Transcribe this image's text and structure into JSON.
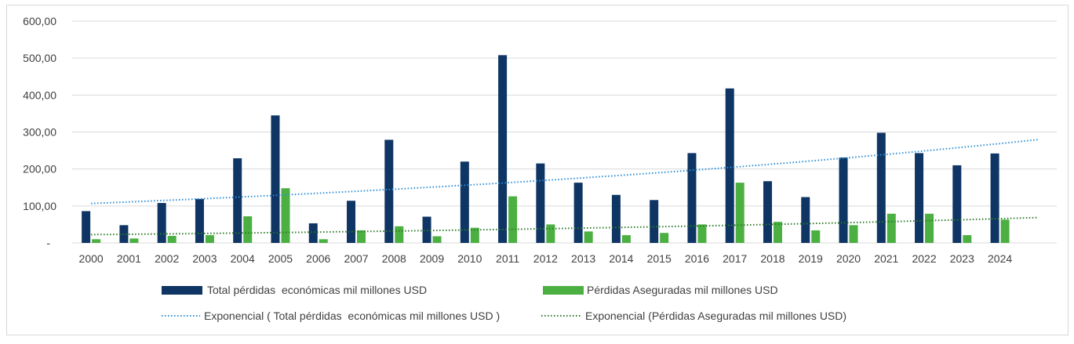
{
  "chart_data": {
    "type": "bar",
    "title": "",
    "xlabel": "",
    "ylabel": "",
    "ylim": [
      0,
      600
    ],
    "yticks": [
      "-",
      "100,00",
      "200,00",
      "300,00",
      "400,00",
      "500,00",
      "600,00"
    ],
    "grid": true,
    "legend_position": "bottom",
    "categories": [
      "2000",
      "2001",
      "2002",
      "2003",
      "2004",
      "2005",
      "2006",
      "2007",
      "2008",
      "2009",
      "2010",
      "2011",
      "2012",
      "2013",
      "2014",
      "2015",
      "2016",
      "2017",
      "2018",
      "2019",
      "2020",
      "2021",
      "2022",
      "2023",
      "2024"
    ],
    "series": [
      {
        "name": "Total pérdidas  económicas mil millones USD",
        "color": "#0e3563",
        "values": [
          86,
          48,
          108,
          119,
          229,
          345,
          53,
          114,
          279,
          71,
          220,
          508,
          215,
          163,
          130,
          116,
          243,
          418,
          167,
          124,
          231,
          298,
          243,
          210,
          242
        ]
      },
      {
        "name": "Pérdidas Aseguradas mil millones USD",
        "color": "#4caf41",
        "values": [
          10,
          12,
          19,
          21,
          72,
          148,
          10,
          34,
          45,
          18,
          41,
          126,
          50,
          31,
          21,
          27,
          50,
          163,
          57,
          34,
          48,
          79,
          79,
          21,
          63
        ]
      }
    ],
    "trendlines": [
      {
        "name": "Exponencial ( Total pérdidas  económicas mil millones USD )",
        "type": "exponential",
        "series": 0,
        "forward_periods": 1,
        "color": "#2e8fd6"
      },
      {
        "name": "Exponencial (Pérdidas Aseguradas mil millones USD)",
        "type": "exponential",
        "series": 1,
        "forward_periods": 1,
        "color": "#2f7a2a"
      }
    ]
  }
}
